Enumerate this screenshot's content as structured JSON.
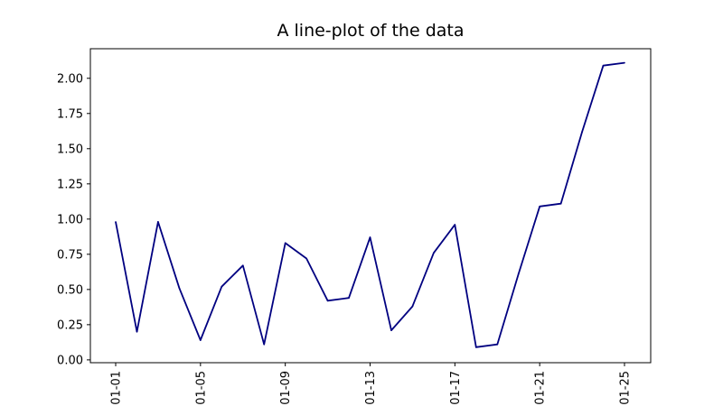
{
  "chart_data": {
    "type": "line",
    "title": "A line-plot of the data",
    "xlabel": "",
    "ylabel": "",
    "line_color": "#000080",
    "x": [
      "01-01",
      "01-02",
      "01-03",
      "01-04",
      "01-05",
      "01-06",
      "01-07",
      "01-08",
      "01-09",
      "01-10",
      "01-11",
      "01-12",
      "01-13",
      "01-14",
      "01-15",
      "01-16",
      "01-17",
      "01-18",
      "01-19",
      "01-20",
      "01-21",
      "01-22",
      "01-23",
      "01-24",
      "01-25"
    ],
    "values": [
      0.98,
      0.2,
      0.98,
      0.51,
      0.14,
      0.52,
      0.67,
      0.11,
      0.83,
      0.72,
      0.42,
      0.44,
      0.87,
      0.21,
      0.38,
      0.76,
      0.96,
      0.09,
      0.11,
      0.61,
      1.09,
      1.11,
      1.62,
      2.09,
      2.11
    ],
    "xticks": [
      "01-01",
      "01-05",
      "01-09",
      "01-13",
      "01-17",
      "01-21",
      "01-25"
    ],
    "yticks": [
      "0.00",
      "0.25",
      "0.50",
      "0.75",
      "1.00",
      "1.25",
      "1.50",
      "1.75",
      "2.00"
    ],
    "ylim": [
      -0.02,
      2.21
    ],
    "grid": false,
    "legend": "none"
  }
}
